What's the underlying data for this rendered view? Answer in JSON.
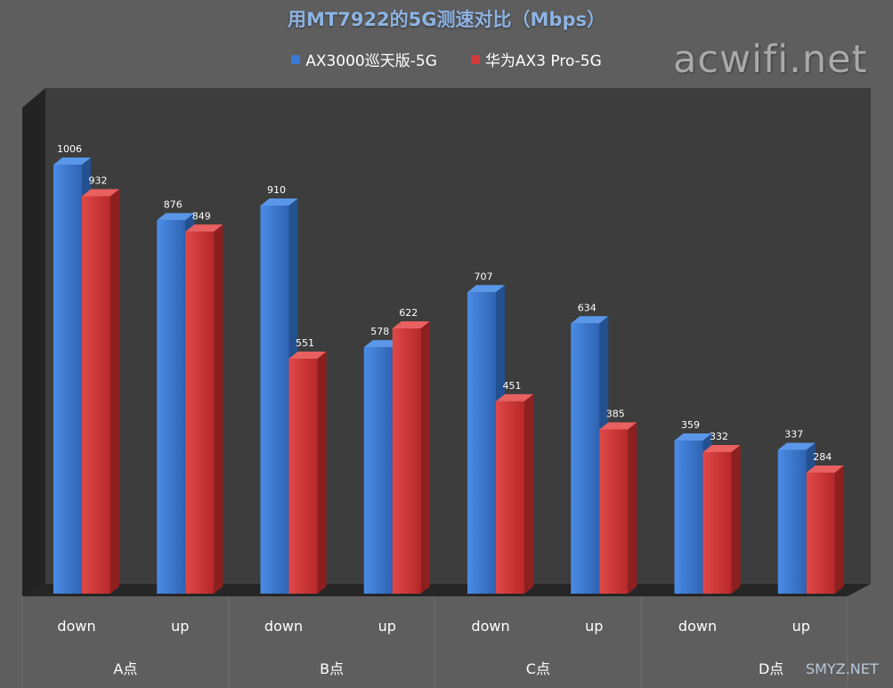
{
  "chart_data": {
    "type": "bar",
    "title": "用MT7922的5G测速对比（Mbps）",
    "groups": [
      "A点",
      "B点",
      "C点",
      "D点"
    ],
    "categories": [
      "down",
      "up",
      "down",
      "up",
      "down",
      "up",
      "down",
      "up"
    ],
    "series": [
      {
        "name": "AX3000巡天版-5G",
        "color": "#3b7ad4",
        "values": [
          1006,
          876,
          910,
          578,
          707,
          634,
          359,
          337
        ]
      },
      {
        "name": "华为AX3 Pro-5G",
        "color": "#d23a3a",
        "values": [
          932,
          849,
          551,
          622,
          451,
          385,
          332,
          284
        ]
      }
    ],
    "ylim": [
      0,
      1100
    ],
    "grid": false,
    "legend_position": "top"
  },
  "watermark": "acwifi.net",
  "watermark2": "SMYZ.NET"
}
